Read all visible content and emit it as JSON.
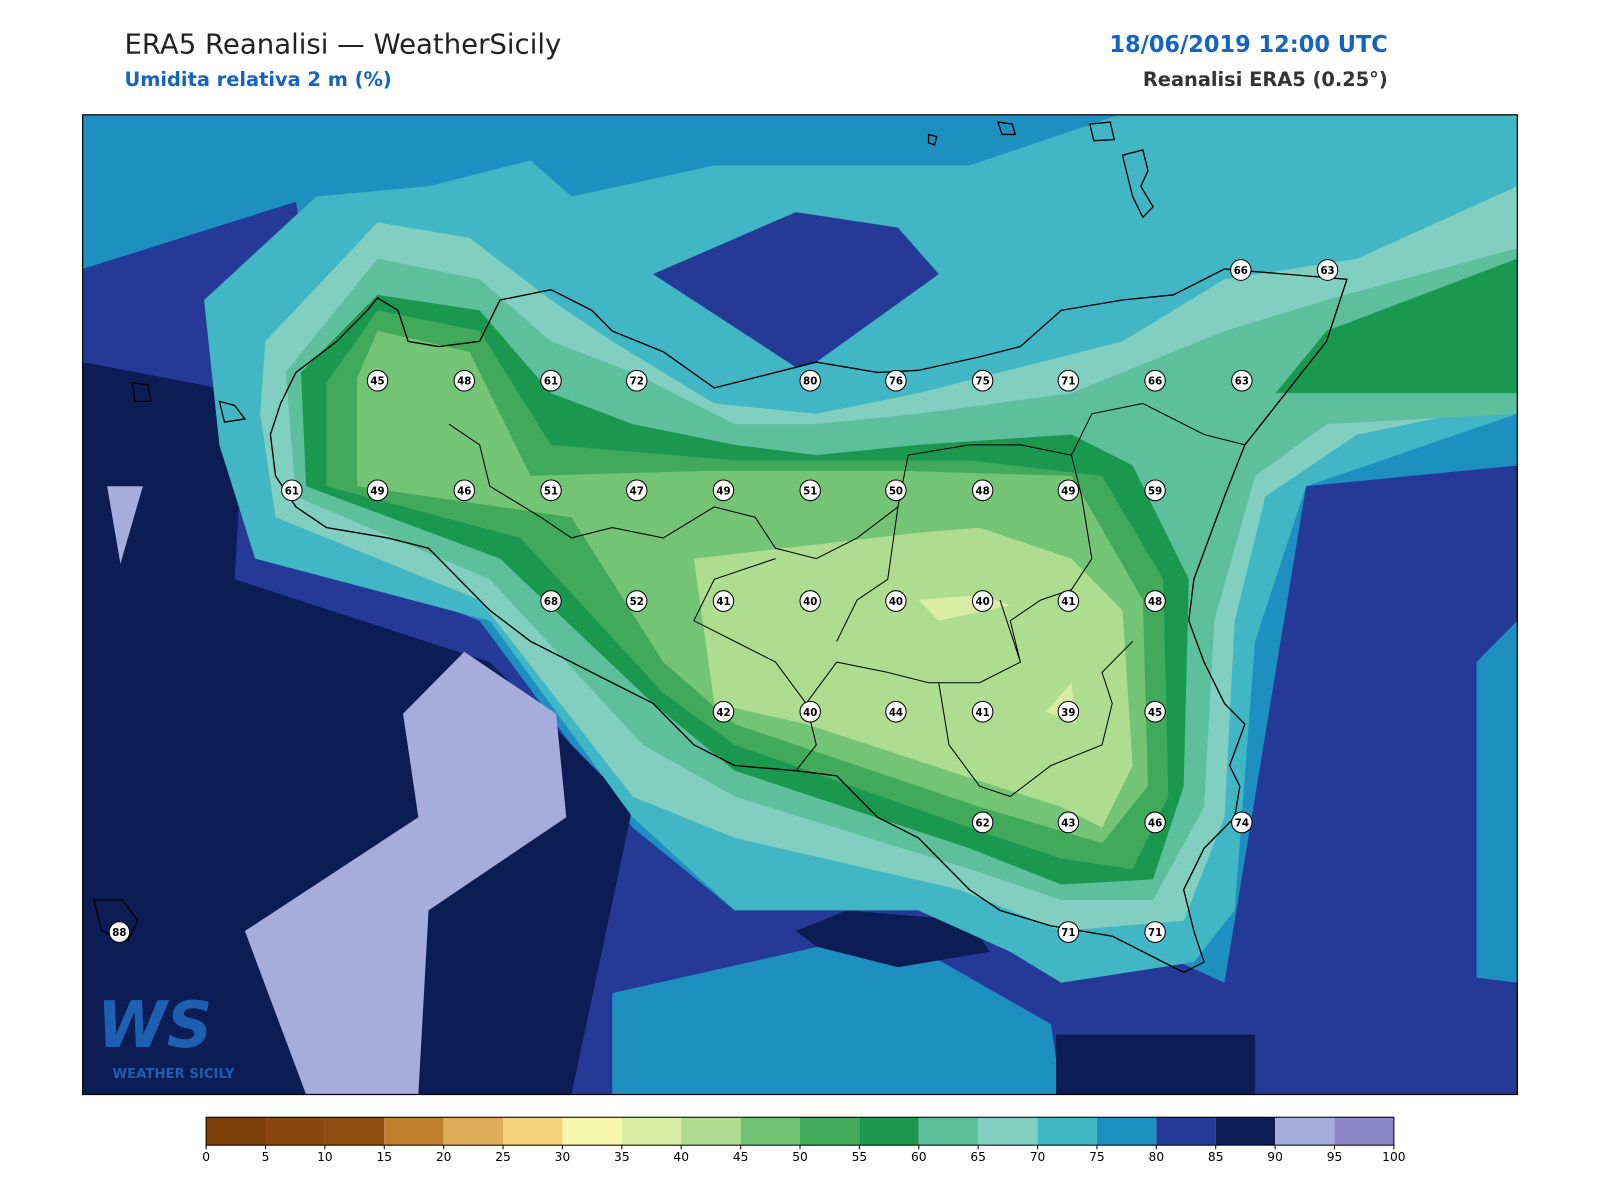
{
  "header": {
    "title": "ERA5 Reanalisi — WeatherSicily",
    "subtitle": "Umidita relativa 2 m (%)",
    "datetime": "18/06/2019 12:00 UTC",
    "source": "Reanalisi ERA5 (0.25°)"
  },
  "stations": [
    66,
    63,
    45,
    48,
    61,
    72,
    80,
    76,
    75,
    71,
    66,
    63,
    61,
    49,
    46,
    51,
    47,
    49,
    51,
    50,
    48,
    49,
    59,
    68,
    52,
    41,
    40,
    40,
    40,
    41,
    48,
    42,
    40,
    44,
    41,
    39,
    45,
    62,
    43,
    46,
    74,
    71,
    71,
    88
  ],
  "colorbar": {
    "ticks": [
      0,
      5,
      10,
      15,
      20,
      25,
      30,
      35,
      40,
      45,
      50,
      55,
      60,
      65,
      70,
      75,
      80,
      85,
      90,
      95,
      100
    ],
    "colors": [
      "#7b3f08",
      "#8a4810",
      "#8f4c11",
      "#c0802e",
      "#e0ad5a",
      "#f0d37a",
      "#f6f6aa",
      "#d9eda5",
      "#aedd8f",
      "#74c476",
      "#40a95a",
      "#1a9850",
      "#5dbf9c",
      "#80cfc0",
      "#41b6c4",
      "#1d8fc1",
      "#243a96",
      "#0c1c55",
      "#a6acdc",
      "#8c88c8"
    ]
  },
  "logo": {
    "text": "WS",
    "tagline": "WEATHER SICILY"
  }
}
